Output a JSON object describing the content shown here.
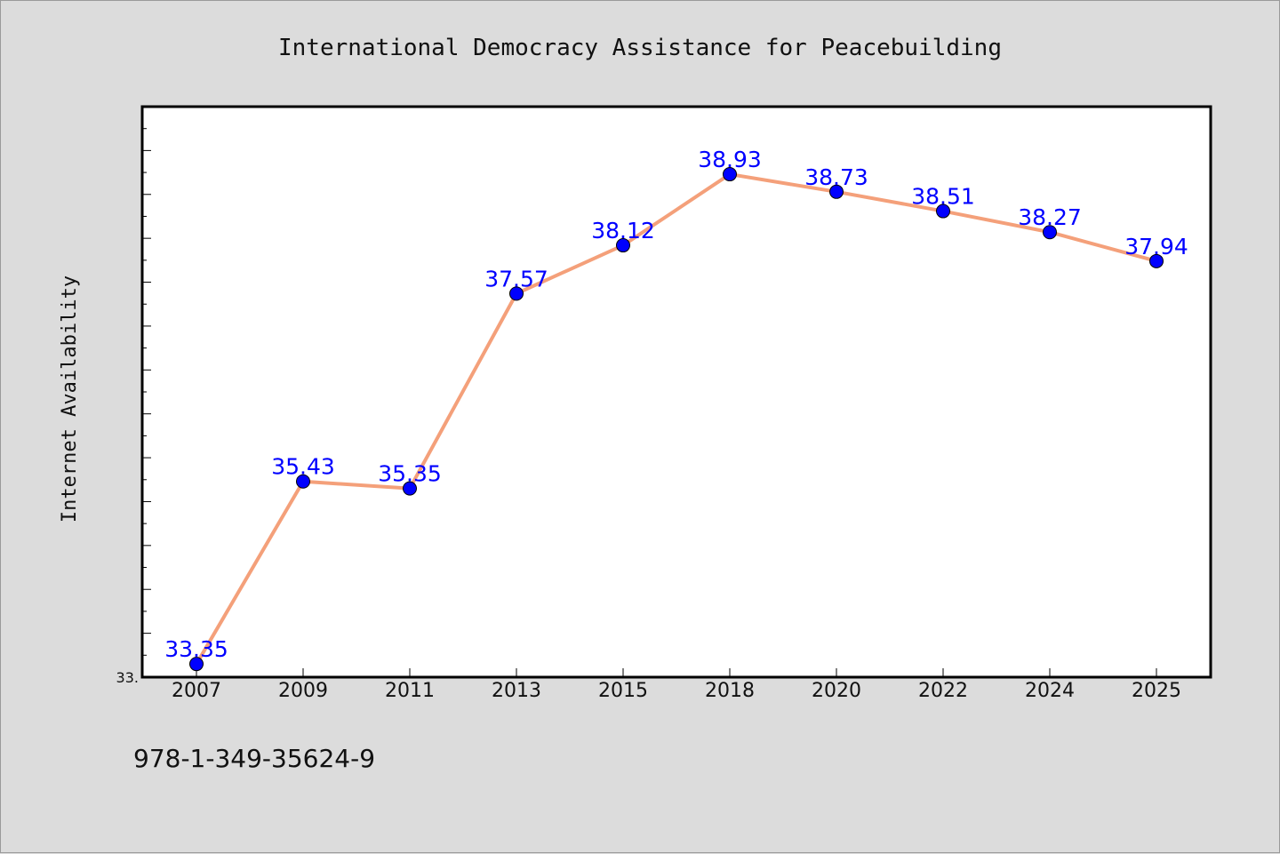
{
  "chart_data": {
    "type": "line",
    "title": "International Democracy Assistance for Peacebuilding",
    "xlabel": "",
    "ylabel": "Internet Availability",
    "categories": [
      "2007",
      "2009",
      "2011",
      "2013",
      "2015",
      "2018",
      "2020",
      "2022",
      "2024",
      "2025"
    ],
    "values": [
      33.35,
      35.43,
      35.35,
      37.57,
      38.12,
      38.93,
      38.73,
      38.51,
      38.27,
      37.94
    ],
    "data_labels": [
      "33.35",
      "35.43",
      "35.35",
      "37.57",
      "38.12",
      "38.93",
      "38.73",
      "38.51",
      "38.27",
      "37.94"
    ],
    "ylim": [
      33.2,
      39.7
    ],
    "y_tick_labels": [
      {
        "value": 33.2,
        "label": "33."
      }
    ],
    "grid": false,
    "line_color": "#f4a07a",
    "marker_color": "#0000ff",
    "label_color": "#0000ff"
  },
  "footer": {
    "code": "978-1-349-35624-9"
  }
}
